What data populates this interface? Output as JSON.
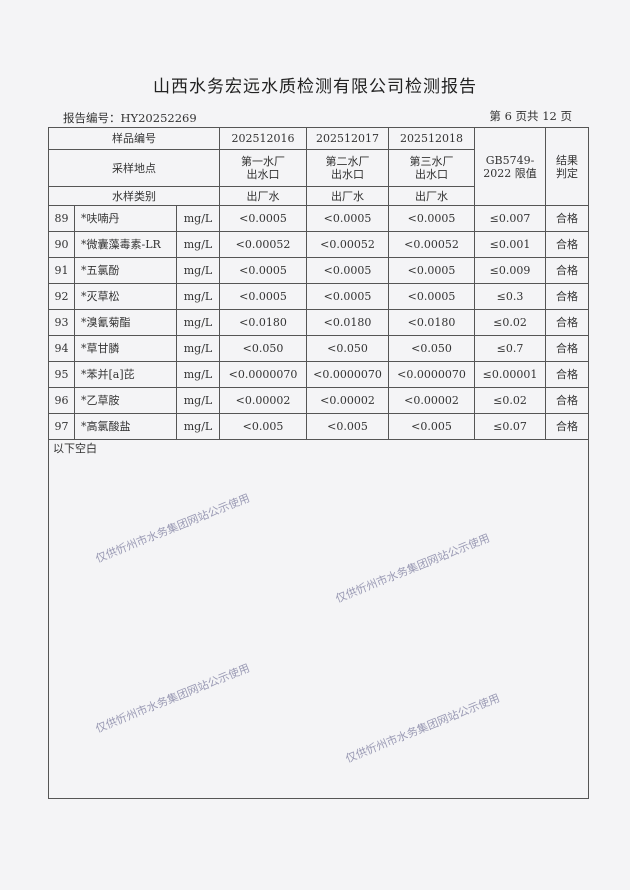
{
  "title": "山西水务宏远水质检测有限公司检测报告",
  "report_no": "报告编号：HY20252269",
  "page_info": "第 6 页共 12 页",
  "header": {
    "sample_no_label": "样品编号",
    "site_label": "采样地点",
    "type_label": "水样类别",
    "standard_label": "GB5749-2022 限值",
    "result_label": "结果判定",
    "samples": [
      {
        "id": "202512016",
        "site": "第一水厂出水口",
        "type": "出厂水"
      },
      {
        "id": "202512017",
        "site": "第二水厂出水口",
        "type": "出厂水"
      },
      {
        "id": "202512018",
        "site": "第三水厂出水口",
        "type": "出厂水"
      }
    ]
  },
  "rows": [
    {
      "no": "89",
      "item": "*呋喃丹",
      "unit": "mg/L",
      "v": [
        "<0.0005",
        "<0.0005",
        "<0.0005"
      ],
      "limit": "≤0.007",
      "result": "合格"
    },
    {
      "no": "90",
      "item": "*微囊藻毒素-LR",
      "unit": "mg/L",
      "v": [
        "<0.00052",
        "<0.00052",
        "<0.00052"
      ],
      "limit": "≤0.001",
      "result": "合格"
    },
    {
      "no": "91",
      "item": "*五氯酚",
      "unit": "mg/L",
      "v": [
        "<0.0005",
        "<0.0005",
        "<0.0005"
      ],
      "limit": "≤0.009",
      "result": "合格"
    },
    {
      "no": "92",
      "item": "*灭草松",
      "unit": "mg/L",
      "v": [
        "<0.0005",
        "<0.0005",
        "<0.0005"
      ],
      "limit": "≤0.3",
      "result": "合格"
    },
    {
      "no": "93",
      "item": "*溴氰菊酯",
      "unit": "mg/L",
      "v": [
        "<0.0180",
        "<0.0180",
        "<0.0180"
      ],
      "limit": "≤0.02",
      "result": "合格"
    },
    {
      "no": "94",
      "item": "*草甘膦",
      "unit": "mg/L",
      "v": [
        "<0.050",
        "<0.050",
        "<0.050"
      ],
      "limit": "≤0.7",
      "result": "合格"
    },
    {
      "no": "95",
      "item": "*苯并[a]芘",
      "unit": "mg/L",
      "v": [
        "<0.0000070",
        "<0.0000070",
        "<0.0000070"
      ],
      "limit": "≤0.00001",
      "result": "合格"
    },
    {
      "no": "96",
      "item": "*乙草胺",
      "unit": "mg/L",
      "v": [
        "<0.00002",
        "<0.00002",
        "<0.00002"
      ],
      "limit": "≤0.02",
      "result": "合格"
    },
    {
      "no": "97",
      "item": "*高氯酸盐",
      "unit": "mg/L",
      "v": [
        "<0.005",
        "<0.005",
        "<0.005"
      ],
      "limit": "≤0.07",
      "result": "合格"
    }
  ],
  "blank_note": "以下空白",
  "watermark": "仅供忻州市水务集团网站公示使用"
}
